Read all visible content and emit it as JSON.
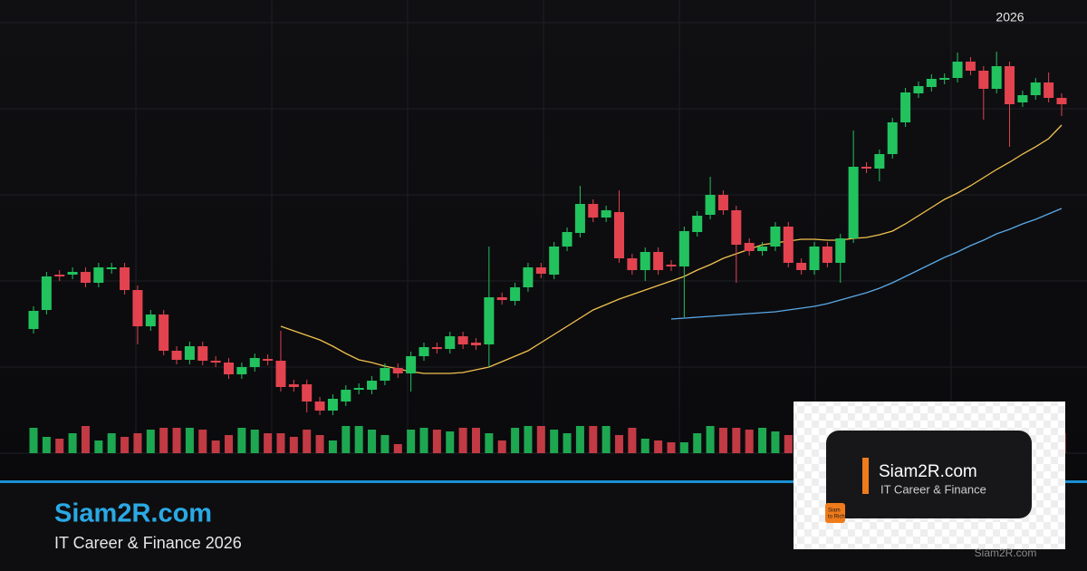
{
  "chart_data": {
    "type": "candlestick",
    "period_label": "2026",
    "ylim": [
      0,
      500
    ],
    "volume_lim": [
      0,
      40
    ],
    "up_color": "#22c35e",
    "down_color": "#e2434f",
    "open": [
      137,
      158,
      197,
      197,
      200,
      188,
      203,
      205,
      180,
      140,
      153,
      113,
      103,
      118,
      102,
      100,
      87,
      95,
      104,
      102,
      76,
      76,
      57,
      47,
      57,
      70,
      70,
      80,
      94,
      88,
      107,
      117,
      115,
      129,
      122,
      120,
      172,
      168,
      183,
      205,
      197,
      228,
      243,
      275,
      260,
      266,
      215,
      202,
      222,
      208,
      206,
      244,
      263,
      285,
      268,
      232,
      223,
      228,
      250,
      210,
      202,
      228,
      210,
      237,
      316,
      314,
      330,
      365,
      397,
      404,
      412,
      414,
      432,
      422,
      402,
      427,
      387,
      395,
      409,
      392
    ],
    "high": [
      162,
      200,
      202,
      205,
      205,
      210,
      210,
      210,
      185,
      158,
      158,
      118,
      123,
      123,
      107,
      105,
      100,
      110,
      109,
      135,
      81,
      81,
      62,
      65,
      75,
      77,
      85,
      99,
      99,
      112,
      122,
      122,
      134,
      134,
      127,
      228,
      177,
      188,
      210,
      210,
      233,
      249,
      295,
      280,
      273,
      290,
      220,
      227,
      227,
      213,
      250,
      267,
      305,
      290,
      273,
      237,
      233,
      255,
      255,
      215,
      233,
      233,
      242,
      356,
      321,
      335,
      370,
      403,
      410,
      418,
      419,
      442,
      437,
      427,
      443,
      432,
      400,
      414,
      420,
      397
    ],
    "low": [
      132,
      153,
      190,
      192,
      183,
      183,
      198,
      175,
      120,
      135,
      108,
      98,
      98,
      97,
      95,
      82,
      82,
      90,
      97,
      68,
      68,
      45,
      42,
      42,
      52,
      65,
      65,
      75,
      83,
      68,
      102,
      110,
      110,
      115,
      114,
      95,
      164,
      163,
      178,
      193,
      192,
      223,
      238,
      255,
      255,
      210,
      197,
      190,
      197,
      201,
      150,
      239,
      258,
      263,
      188,
      218,
      218,
      223,
      205,
      197,
      197,
      205,
      188,
      232,
      309,
      300,
      325,
      360,
      392,
      399,
      407,
      409,
      417,
      368,
      397,
      338,
      382,
      390,
      387,
      372
    ],
    "close": [
      157,
      195,
      195,
      200,
      188,
      205,
      205,
      180,
      140,
      153,
      113,
      103,
      118,
      102,
      100,
      87,
      95,
      105,
      102,
      73,
      73,
      57,
      47,
      60,
      70,
      72,
      80,
      94,
      88,
      107,
      117,
      115,
      129,
      120,
      119,
      172,
      169,
      183,
      205,
      198,
      228,
      244,
      275,
      260,
      268,
      215,
      202,
      222,
      202,
      206,
      245,
      262,
      285,
      268,
      230,
      223,
      228,
      250,
      210,
      202,
      228,
      210,
      237,
      316,
      314,
      330,
      365,
      398,
      405,
      413,
      414,
      432,
      422,
      402,
      427,
      385,
      395,
      409,
      392,
      385
    ],
    "volume": [
      28,
      18,
      16,
      22,
      30,
      14,
      22,
      18,
      22,
      26,
      28,
      28,
      28,
      26,
      14,
      20,
      28,
      26,
      22,
      22,
      18,
      26,
      20,
      14,
      30,
      30,
      26,
      20,
      10,
      26,
      28,
      26,
      24,
      28,
      28,
      22,
      14,
      28,
      30,
      30,
      26,
      22,
      30,
      30,
      30,
      20,
      28,
      16,
      14,
      12,
      12,
      22,
      30,
      28,
      28,
      26,
      28,
      24,
      20,
      22,
      20,
      24,
      22,
      16,
      14,
      22,
      20,
      22,
      24,
      22,
      22,
      26,
      26,
      20,
      20,
      26,
      22,
      22,
      20,
      22
    ],
    "moving_averages": [
      {
        "color": "#f2c14e",
        "values": [
          null,
          null,
          null,
          null,
          null,
          null,
          null,
          null,
          null,
          null,
          null,
          null,
          null,
          null,
          null,
          null,
          null,
          null,
          null,
          140,
          135,
          130,
          125,
          118,
          110,
          103,
          100,
          96,
          93,
          90,
          88,
          88,
          88,
          89,
          92,
          95,
          101,
          107,
          113,
          122,
          131,
          140,
          149,
          158,
          164,
          170,
          175,
          180,
          185,
          190,
          195,
          202,
          208,
          215,
          220,
          225,
          230,
          232,
          234,
          236,
          236,
          235,
          235,
          237,
          238,
          241,
          245,
          253,
          262,
          271,
          280,
          287,
          295,
          304,
          313,
          321,
          330,
          338,
          347,
          362
        ]
      },
      {
        "color": "#5aa9e6",
        "values": [
          null,
          null,
          null,
          null,
          null,
          null,
          null,
          null,
          null,
          null,
          null,
          null,
          null,
          null,
          null,
          null,
          null,
          null,
          null,
          null,
          null,
          null,
          null,
          null,
          null,
          null,
          null,
          null,
          null,
          null,
          null,
          null,
          null,
          null,
          null,
          null,
          null,
          null,
          null,
          null,
          null,
          null,
          null,
          null,
          null,
          null,
          null,
          null,
          null,
          148,
          149,
          150,
          151,
          152,
          153,
          154,
          155,
          156,
          158,
          160,
          162,
          165,
          169,
          173,
          177,
          182,
          188,
          195,
          202,
          209,
          216,
          222,
          229,
          235,
          242,
          247,
          253,
          258,
          264,
          270
        ]
      }
    ]
  },
  "branding": {
    "title": "Siam2R.com",
    "subtitle": "IT Career & Finance 2026"
  },
  "badge": {
    "title": "Siam2R.com",
    "subtitle": "IT Career & Finance",
    "icon_lines": [
      "Siam",
      "to Rich"
    ]
  },
  "footer": "Siam2R.com"
}
